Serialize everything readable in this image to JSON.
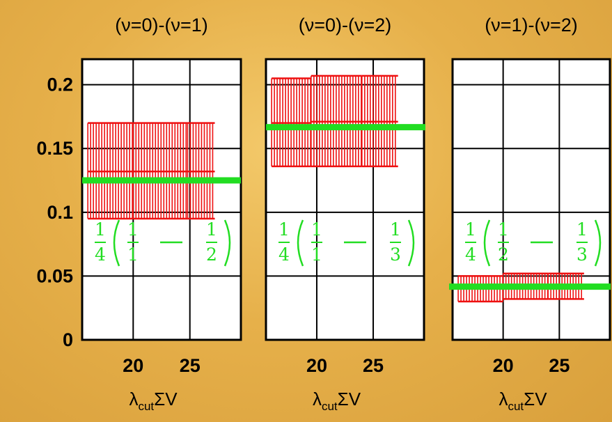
{
  "chart_data": [
    {
      "type": "scatter",
      "title": "(ν=0)-(ν=1)",
      "xlabel_main": "λ",
      "xlabel_sub": "cut",
      "xlabel_tail": "ΣV",
      "xlim": [
        15.5,
        29.5
      ],
      "ylim": [
        0,
        0.22
      ],
      "xticks": [
        20,
        25
      ],
      "yticks": [
        0,
        0.05,
        0.1,
        0.15,
        0.2
      ],
      "ytick_labels": [
        "0",
        "0.05",
        "0.1",
        "0.15",
        "0.2"
      ],
      "grid": true,
      "error_color": "#ee1111",
      "reference": {
        "y": 0.125,
        "color": "#22dd22",
        "label": {
          "a": "1",
          "b": "4",
          "c": "1",
          "d": "1",
          "e": "1",
          "f": "2"
        }
      },
      "series": [
        {
          "x_start": 16.0,
          "x_end": 20.0,
          "y_low": 0.095,
          "y_high": 0.17,
          "y_mid": 0.132
        },
        {
          "x_start": 20.0,
          "x_end": 24.8,
          "y_low": 0.095,
          "y_high": 0.17,
          "y_mid": 0.132
        },
        {
          "x_start": 24.8,
          "x_end": 27.2,
          "y_low": 0.095,
          "y_high": 0.17,
          "y_mid": 0.132
        }
      ]
    },
    {
      "type": "scatter",
      "title": "(ν=0)-(ν=2)",
      "xlabel_main": "λ",
      "xlabel_sub": "cut",
      "xlabel_tail": "ΣV",
      "xlim": [
        15.5,
        29.5
      ],
      "ylim": [
        0,
        0.22
      ],
      "xticks": [
        20,
        25
      ],
      "yticks": [
        0,
        0.05,
        0.1,
        0.15,
        0.2
      ],
      "ytick_labels": [
        "",
        "",
        "",
        "",
        ""
      ],
      "grid": true,
      "error_color": "#ee1111",
      "reference": {
        "y": 0.1667,
        "color": "#22dd22",
        "label": {
          "a": "1",
          "b": "4",
          "c": "1",
          "d": "1",
          "e": "1",
          "f": "3"
        }
      },
      "series": [
        {
          "x_start": 16.0,
          "x_end": 19.5,
          "y_low": 0.136,
          "y_high": 0.205,
          "y_mid": 0.17
        },
        {
          "x_start": 19.5,
          "x_end": 24.0,
          "y_low": 0.136,
          "y_high": 0.207,
          "y_mid": 0.171
        },
        {
          "x_start": 24.0,
          "x_end": 27.2,
          "y_low": 0.136,
          "y_high": 0.207,
          "y_mid": 0.171
        }
      ]
    },
    {
      "type": "scatter",
      "title": "(ν=1)-(ν=2)",
      "xlabel_main": "λ",
      "xlabel_sub": "cut",
      "xlabel_tail": "ΣV",
      "xlim": [
        15.5,
        29.5
      ],
      "ylim": [
        0,
        0.22
      ],
      "xticks": [
        20,
        25
      ],
      "yticks": [
        0,
        0.05,
        0.1,
        0.15,
        0.2
      ],
      "ytick_labels": [
        "",
        "",
        "",
        "",
        ""
      ],
      "grid": true,
      "error_color": "#ee1111",
      "reference": {
        "y": 0.0417,
        "color": "#22dd22",
        "label": {
          "a": "1",
          "b": "4",
          "c": "1",
          "d": "2",
          "e": "1",
          "f": "3"
        }
      },
      "series": [
        {
          "x_start": 16.0,
          "x_end": 20.0,
          "y_low": 0.03,
          "y_high": 0.05,
          "y_mid": 0.04
        },
        {
          "x_start": 20.0,
          "x_end": 24.0,
          "y_low": 0.032,
          "y_high": 0.052,
          "y_mid": 0.042
        },
        {
          "x_start": 24.0,
          "x_end": 27.2,
          "y_low": 0.032,
          "y_high": 0.052,
          "y_mid": 0.042
        }
      ]
    }
  ]
}
